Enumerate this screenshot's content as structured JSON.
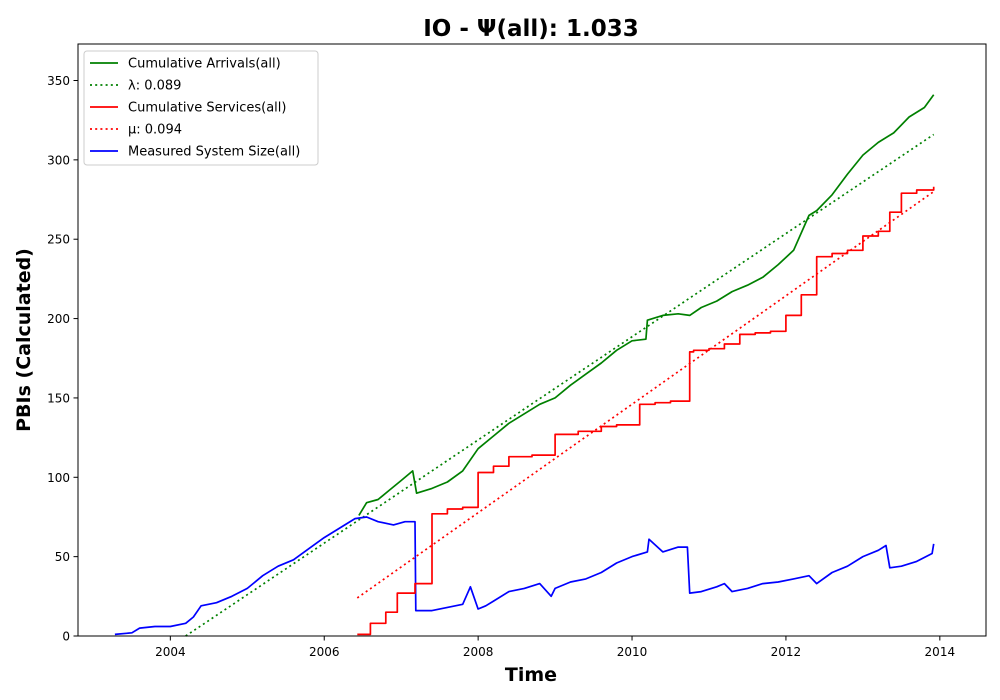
{
  "chart_data": {
    "type": "line",
    "title": "IO -  Ψ(all): 1.033",
    "xlabel": "Time",
    "ylabel": "PBIs (Calculated)",
    "xlim": [
      2002.8,
      2014.6
    ],
    "ylim": [
      0,
      373
    ],
    "xticks": [
      2004,
      2006,
      2008,
      2010,
      2012,
      2014
    ],
    "yticks": [
      0,
      50,
      100,
      150,
      200,
      250,
      300,
      350
    ],
    "grid": false,
    "legend_position": "top-left",
    "series": [
      {
        "name": "Cumulative Arrivals(all)",
        "color": "#008000",
        "style": "solid",
        "x": [
          2006.45,
          2006.55,
          2006.7,
          2006.85,
          2007.0,
          2007.15,
          2007.2,
          2007.4,
          2007.6,
          2007.8,
          2008.0,
          2008.2,
          2008.4,
          2008.6,
          2008.8,
          2009.0,
          2009.2,
          2009.4,
          2009.6,
          2009.8,
          2010.0,
          2010.18,
          2010.2,
          2010.4,
          2010.6,
          2010.75,
          2010.9,
          2011.1,
          2011.3,
          2011.5,
          2011.7,
          2011.9,
          2012.1,
          2012.3,
          2012.4,
          2012.6,
          2012.8,
          2013.0,
          2013.2,
          2013.4,
          2013.6,
          2013.8,
          2013.92
        ],
        "values": [
          76,
          84,
          86,
          92,
          98,
          104,
          90,
          93,
          97,
          104,
          118,
          126,
          134,
          140,
          146,
          150,
          158,
          165,
          172,
          180,
          186,
          187,
          199,
          202,
          203,
          202,
          207,
          211,
          217,
          221,
          226,
          234,
          243,
          265,
          268,
          278,
          291,
          303,
          311,
          317,
          327,
          333,
          341
        ]
      },
      {
        "name": "λ: 0.089",
        "color": "#008000",
        "style": "dotted",
        "x": [
          2004.2,
          2013.92
        ],
        "values": [
          0,
          316
        ]
      },
      {
        "name": "Cumulative Services(all)",
        "color": "#ff0000",
        "style": "step",
        "x": [
          2006.43,
          2006.6,
          2006.8,
          2006.95,
          2007.18,
          2007.4,
          2007.6,
          2007.8,
          2008.0,
          2008.2,
          2008.4,
          2008.7,
          2009.0,
          2009.3,
          2009.6,
          2009.8,
          2010.1,
          2010.3,
          2010.5,
          2010.75,
          2010.8,
          2011.0,
          2011.2,
          2011.4,
          2011.6,
          2011.8,
          2012.0,
          2012.2,
          2012.4,
          2012.6,
          2012.8,
          2013.0,
          2013.2,
          2013.35,
          2013.5,
          2013.7,
          2013.92
        ],
        "values": [
          1,
          8,
          15,
          27,
          33,
          77,
          80,
          81,
          103,
          107,
          113,
          114,
          127,
          129,
          132,
          133,
          146,
          147,
          148,
          179,
          180,
          181,
          184,
          190,
          191,
          192,
          202,
          215,
          239,
          241,
          243,
          252,
          255,
          267,
          279,
          281,
          283
        ]
      },
      {
        "name": "μ: 0.094",
        "color": "#ff0000",
        "style": "dotted",
        "x": [
          2006.43,
          2013.92
        ],
        "values": [
          24,
          280
        ]
      },
      {
        "name": "Measured System Size(all)",
        "color": "#0000ff",
        "style": "solid",
        "x": [
          2003.28,
          2003.5,
          2003.6,
          2003.8,
          2004.0,
          2004.2,
          2004.3,
          2004.4,
          2004.6,
          2004.8,
          2005.0,
          2005.2,
          2005.4,
          2005.6,
          2005.8,
          2006.0,
          2006.2,
          2006.4,
          2006.55,
          2006.7,
          2006.9,
          2007.05,
          2007.18,
          2007.19,
          2007.4,
          2007.6,
          2007.8,
          2007.9,
          2008.0,
          2008.1,
          2008.2,
          2008.4,
          2008.6,
          2008.8,
          2008.95,
          2009.0,
          2009.2,
          2009.4,
          2009.6,
          2009.8,
          2010.0,
          2010.2,
          2010.22,
          2010.4,
          2010.6,
          2010.72,
          2010.75,
          2010.9,
          2011.1,
          2011.2,
          2011.3,
          2011.5,
          2011.7,
          2011.9,
          2012.1,
          2012.3,
          2012.4,
          2012.6,
          2012.8,
          2013.0,
          2013.2,
          2013.3,
          2013.35,
          2013.5,
          2013.7,
          2013.9,
          2013.92
        ],
        "values": [
          1,
          2,
          5,
          6,
          6,
          8,
          12,
          19,
          21,
          25,
          30,
          38,
          44,
          48,
          55,
          62,
          68,
          74,
          75,
          72,
          70,
          72,
          72,
          16,
          16,
          18,
          20,
          31,
          17,
          19,
          22,
          28,
          30,
          33,
          25,
          30,
          34,
          36,
          40,
          46,
          50,
          53,
          61,
          53,
          56,
          56,
          27,
          28,
          31,
          33,
          28,
          30,
          33,
          34,
          36,
          38,
          33,
          40,
          44,
          50,
          54,
          57,
          43,
          44,
          47,
          52,
          58
        ]
      }
    ]
  },
  "legend": {
    "items": [
      {
        "label": "Cumulative Arrivals(all)",
        "color": "#008000",
        "style": "solid"
      },
      {
        "label": "λ: 0.089",
        "color": "#008000",
        "style": "dotted"
      },
      {
        "label": "Cumulative Services(all)",
        "color": "#ff0000",
        "style": "solid"
      },
      {
        "label": "μ: 0.094",
        "color": "#ff0000",
        "style": "dotted"
      },
      {
        "label": "Measured System Size(all)",
        "color": "#0000ff",
        "style": "solid"
      }
    ]
  }
}
